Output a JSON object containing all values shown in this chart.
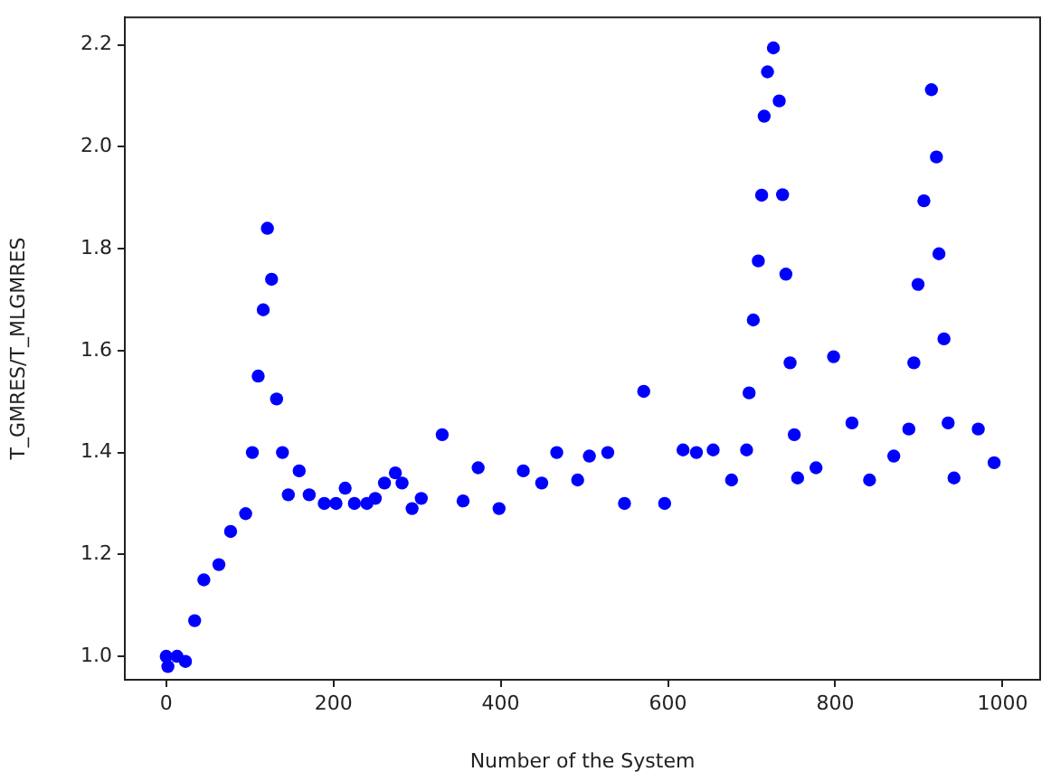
{
  "chart_data": {
    "type": "scatter",
    "xlabel": "Number of the System",
    "ylabel": "T_GMRES/T_MLGMRES",
    "xlim": [
      -49.5,
      1045
    ],
    "xticks": [
      0,
      200,
      400,
      600,
      800,
      1000
    ],
    "ylim": [
      0.954,
      2.254
    ],
    "yticks": [
      {
        "value": 1,
        "label": "1.0"
      },
      {
        "value": 1.2,
        "label": "1.2"
      },
      {
        "value": 1.4,
        "label": "1.4"
      },
      {
        "value": 1.6,
        "label": "1.6"
      },
      {
        "value": 1.8,
        "label": "1.8"
      },
      {
        "value": 2,
        "label": "2.0"
      },
      {
        "value": 2.2,
        "label": "2.2"
      }
    ],
    "grid": false,
    "legend": false,
    "marker": "circle",
    "x": [
      0,
      2,
      13,
      23,
      34,
      45,
      63,
      77,
      95,
      103,
      110,
      116,
      121,
      126,
      132,
      139,
      146,
      159,
      171,
      189,
      203,
      214,
      225,
      240,
      250,
      261,
      274,
      282,
      294,
      305,
      330,
      355,
      373,
      398,
      427,
      449,
      467,
      492,
      506,
      528,
      548,
      571,
      596,
      618,
      634,
      654,
      676,
      694,
      697,
      702,
      708,
      712,
      715,
      719,
      726,
      733,
      737,
      741,
      746,
      751,
      755,
      777,
      798,
      820,
      841,
      870,
      888,
      894,
      899,
      906,
      915,
      921,
      924,
      930,
      935,
      942,
      971,
      990
    ],
    "series": [
      {
        "color": "#0000ff",
        "values": [
          1.0,
          0.98,
          1.0,
          0.99,
          1.07,
          1.15,
          1.18,
          1.245,
          1.28,
          1.4,
          1.55,
          1.68,
          1.84,
          1.74,
          1.505,
          1.4,
          1.317,
          1.364,
          1.317,
          1.3,
          1.3,
          1.33,
          1.3,
          1.3,
          1.31,
          1.34,
          1.36,
          1.34,
          1.29,
          1.31,
          1.435,
          1.305,
          1.37,
          1.29,
          1.364,
          1.34,
          1.4,
          1.346,
          1.393,
          1.4,
          1.3,
          1.52,
          1.3,
          1.405,
          1.4,
          1.405,
          1.346,
          1.405,
          1.517,
          1.66,
          1.776,
          1.905,
          2.06,
          2.147,
          2.194,
          2.09,
          1.906,
          1.75,
          1.576,
          1.435,
          1.35,
          1.37,
          1.588,
          1.458,
          1.346,
          1.393,
          1.446,
          1.576,
          1.73,
          1.894,
          2.112,
          1.98,
          1.79,
          1.623,
          1.458,
          1.35,
          1.446,
          1.38
        ]
      }
    ]
  }
}
